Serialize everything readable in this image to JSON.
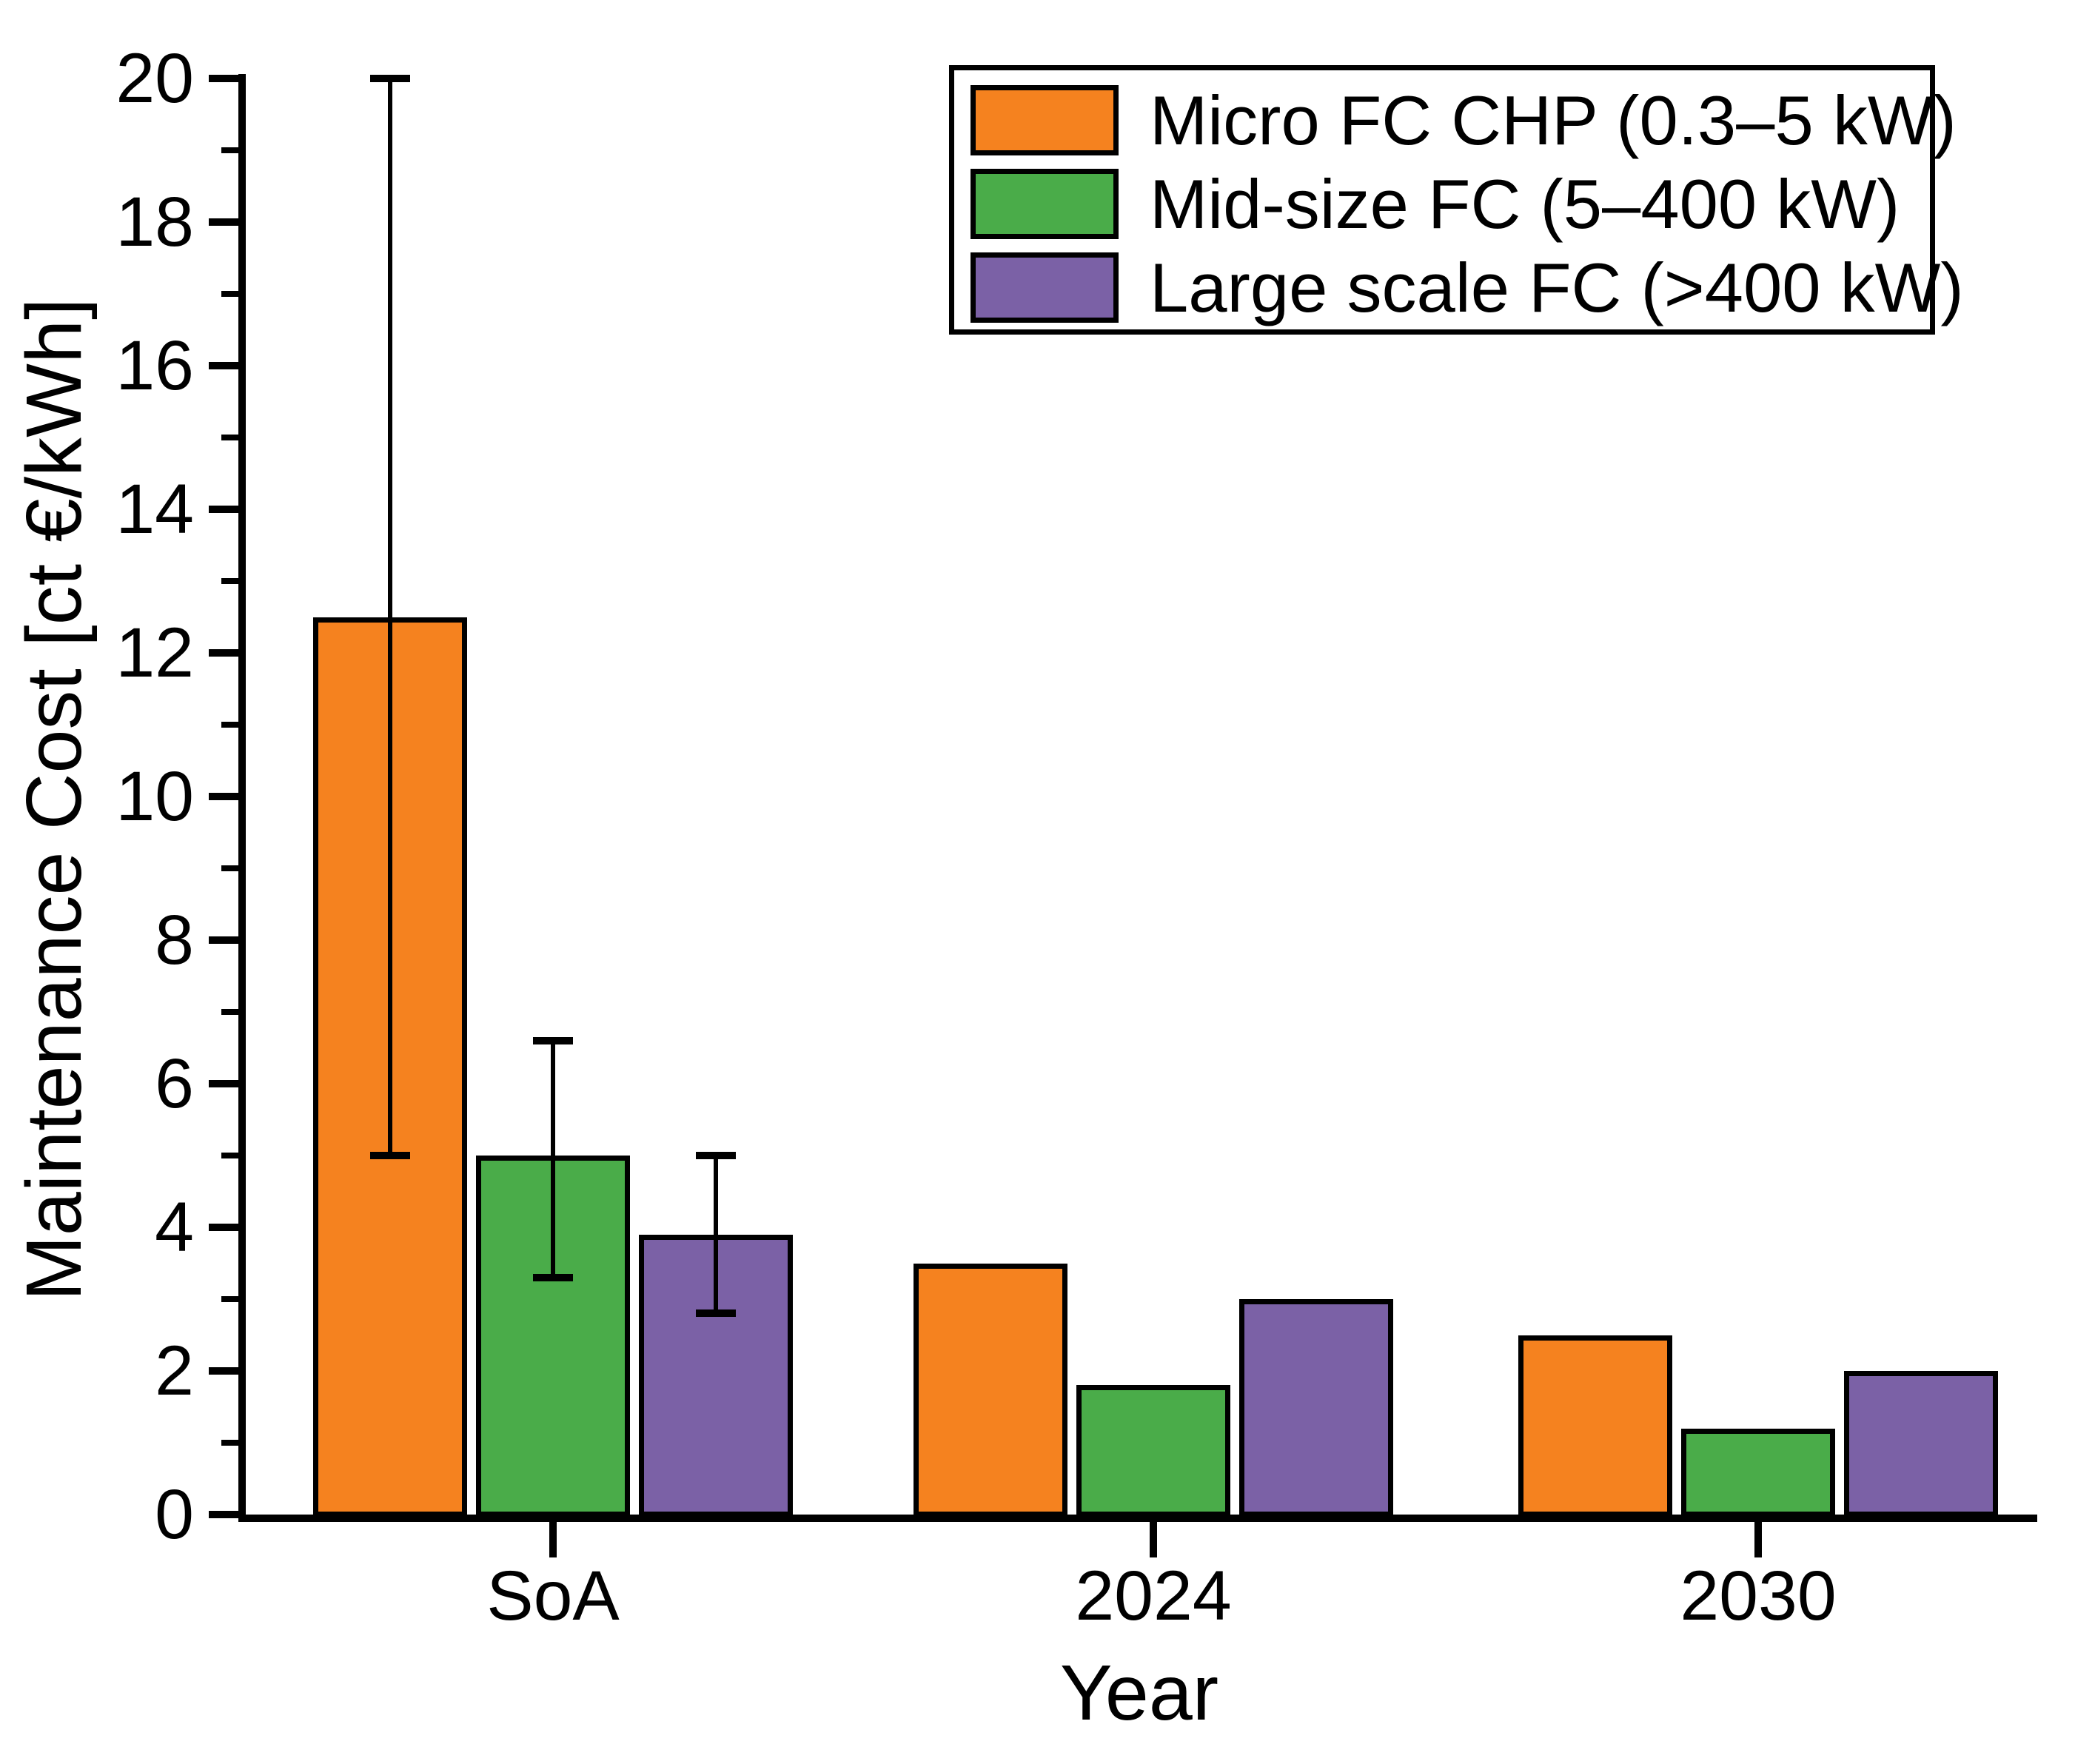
{
  "page": {
    "background": "#ffffff"
  },
  "chart_data": {
    "type": "bar",
    "title": "",
    "xlabel": "Year",
    "ylabel": "Maintenance Cost [ct €/kWh]",
    "categories": [
      "SoA",
      "2024",
      "2030"
    ],
    "series": [
      {
        "name": "Micro FC CHP (0.3–5 kW)",
        "color": "#F5821F",
        "values": [
          12.5,
          3.5,
          2.5
        ],
        "error_bars": [
          {
            "low": 5.0,
            "high": 20.0
          },
          null,
          null
        ]
      },
      {
        "name": "Mid-size FC (5–400 kW)",
        "color": "#4AAC49",
        "values": [
          5.0,
          1.8,
          1.2
        ],
        "error_bars": [
          {
            "low": 3.3,
            "high": 6.6
          },
          null,
          null
        ]
      },
      {
        "name": "Large scale FC (>400 kW)",
        "color": "#7B61A6",
        "values": [
          3.9,
          3.0,
          2.0
        ],
        "error_bars": [
          {
            "low": 2.8,
            "high": 5.0
          },
          null,
          null
        ]
      }
    ],
    "ylim": [
      0,
      20
    ],
    "y_major_ticks": [
      0,
      2,
      4,
      6,
      8,
      10,
      12,
      14,
      16,
      18,
      20
    ],
    "y_minor_ticks": [
      1,
      3,
      5,
      7,
      9,
      11,
      13,
      15,
      17,
      19
    ],
    "bar_edge_color": "#000000",
    "error_bar_color": "#000000",
    "axis_color": "#000000",
    "grid": false,
    "legend": {
      "position": "top-right",
      "border_color": "#000000",
      "background": "#ffffff"
    }
  }
}
